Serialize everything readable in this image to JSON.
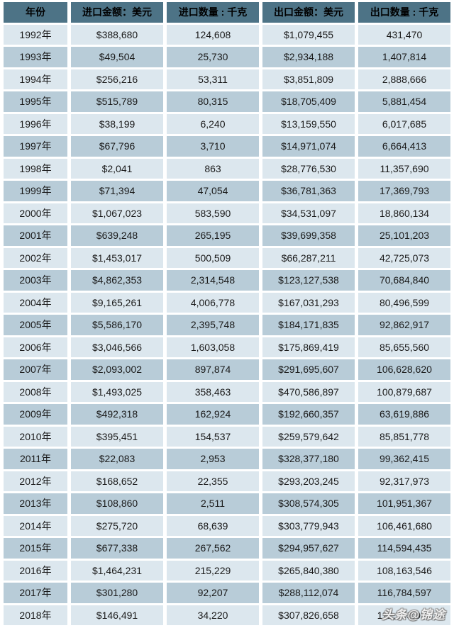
{
  "chart_data": {
    "type": "table",
    "columns": [
      "年份",
      "进口金额：美元",
      "进口数量 : 千克",
      "出口金额：美元",
      "出口数量 : 千克"
    ],
    "rows": [
      [
        "1992年",
        "$388,680",
        "124,608",
        "$1,079,455",
        "431,470"
      ],
      [
        "1993年",
        "$49,504",
        "25,730",
        "$2,934,188",
        "1,407,814"
      ],
      [
        "1994年",
        "$256,216",
        "53,311",
        "$3,851,809",
        "2,888,666"
      ],
      [
        "1995年",
        "$515,789",
        "80,315",
        "$18,705,409",
        "5,881,454"
      ],
      [
        "1996年",
        "$38,199",
        "6,240",
        "$13,159,550",
        "6,017,685"
      ],
      [
        "1997年",
        "$67,796",
        "3,710",
        "$14,971,074",
        "6,664,413"
      ],
      [
        "1998年",
        "$2,041",
        "863",
        "$28,776,530",
        "11,357,690"
      ],
      [
        "1999年",
        "$71,394",
        "47,054",
        "$36,781,363",
        "17,369,793"
      ],
      [
        "2000年",
        "$1,067,023",
        "583,590",
        "$34,531,097",
        "18,860,134"
      ],
      [
        "2001年",
        "$639,248",
        "265,195",
        "$39,699,358",
        "25,101,203"
      ],
      [
        "2002年",
        "$1,453,017",
        "500,509",
        "$66,287,211",
        "42,725,073"
      ],
      [
        "2003年",
        "$4,862,353",
        "2,314,548",
        "$123,127,538",
        "70,684,840"
      ],
      [
        "2004年",
        "$9,165,261",
        "4,006,778",
        "$167,031,293",
        "80,496,599"
      ],
      [
        "2005年",
        "$5,586,170",
        "2,395,748",
        "$184,171,835",
        "92,862,917"
      ],
      [
        "2006年",
        "$3,046,566",
        "1,603,058",
        "$175,869,419",
        "85,655,560"
      ],
      [
        "2007年",
        "$2,093,002",
        "897,874",
        "$291,695,607",
        "106,628,620"
      ],
      [
        "2008年",
        "$1,493,025",
        "358,463",
        "$470,586,897",
        "100,879,687"
      ],
      [
        "2009年",
        "$492,318",
        "162,924",
        "$192,660,357",
        "63,619,886"
      ],
      [
        "2010年",
        "$395,451",
        "154,537",
        "$259,579,642",
        "85,851,778"
      ],
      [
        "2011年",
        "$22,083",
        "2,953",
        "$328,377,180",
        "99,362,415"
      ],
      [
        "2012年",
        "$168,652",
        "22,355",
        "$293,203,245",
        "92,317,973"
      ],
      [
        "2013年",
        "$108,860",
        "2,511",
        "$308,574,305",
        "101,951,367"
      ],
      [
        "2014年",
        "$275,720",
        "68,639",
        "$303,779,943",
        "106,461,680"
      ],
      [
        "2015年",
        "$677,338",
        "267,562",
        "$294,957,627",
        "114,594,435"
      ],
      [
        "2016年",
        "$1,464,231",
        "215,229",
        "$265,840,380",
        "108,163,546"
      ],
      [
        "2017年",
        "$301,280",
        "92,207",
        "$288,112,074",
        "116,784,597"
      ],
      [
        "2018年",
        "$146,491",
        "34,220",
        "$307,826,658",
        "112,703,036"
      ]
    ]
  },
  "watermark": {
    "text": "头条@锦途"
  },
  "colors": {
    "header_bg": "#4d7386",
    "row_light": "#dce7ee",
    "row_dark": "#b8ccd8",
    "gap": "#ffffff",
    "text": "#1a1a1a",
    "header_text": "#000000"
  }
}
